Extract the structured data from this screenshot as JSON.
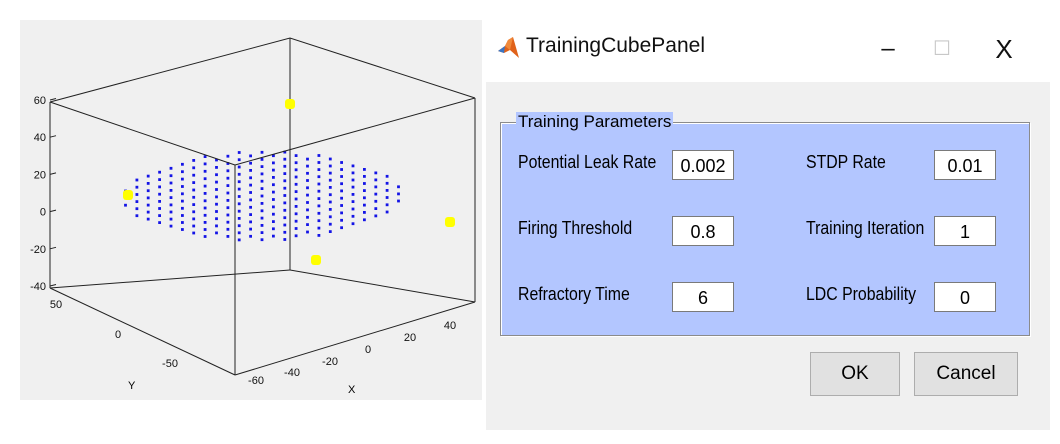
{
  "plot": {
    "z_ticks": [
      "60",
      "40",
      "20",
      "0",
      "-20",
      "-40"
    ],
    "y_ticks": [
      "50",
      "0",
      "-50"
    ],
    "x_ticks": [
      "-60",
      "-40",
      "-20",
      "0",
      "20",
      "40"
    ],
    "xlabel": "X",
    "ylabel": "Y",
    "point_color": "#1414e6",
    "highlight_color": "#ffff00"
  },
  "window": {
    "title": "TrainingCubePanel",
    "minimize_glyph": "–",
    "maximize_glyph": "☐",
    "close_glyph": "X"
  },
  "group": {
    "title": "Training Parameters"
  },
  "params": {
    "potential_leak_rate": {
      "label": "Potential Leak Rate",
      "value": "0.002"
    },
    "firing_threshold": {
      "label": "Firing Threshold",
      "value": "0.8"
    },
    "refractory_time": {
      "label": "Refractory Time",
      "value": "6"
    },
    "stdp_rate": {
      "label": "STDP Rate",
      "value": "0.01"
    },
    "training_iteration": {
      "label": "Training Iteration",
      "value": "1"
    },
    "ldc_probability": {
      "label": "LDC Probability",
      "value": "0"
    }
  },
  "buttons": {
    "ok": "OK",
    "cancel": "Cancel"
  }
}
